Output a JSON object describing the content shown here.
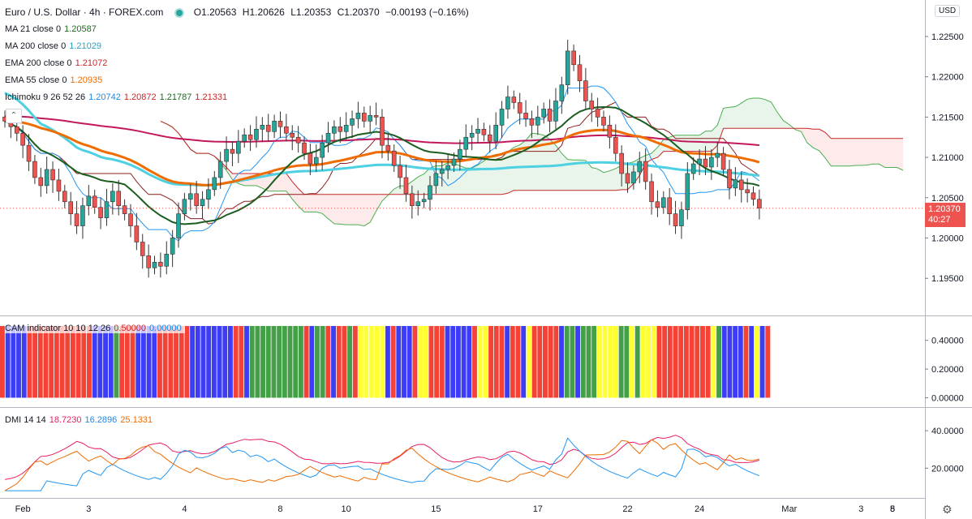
{
  "header": {
    "symbol": "Euro / U.S. Dollar · 4h · FOREX.com",
    "open": "O1.20563",
    "high": "H1.20626",
    "low": "L1.20353",
    "close": "C1.20370",
    "change": "−0.00193 (−0.16%)",
    "currency_button": "USD"
  },
  "indicators": {
    "ma21": {
      "label": "MA 21 close 0",
      "value": "1.20587"
    },
    "ma200": {
      "label": "MA 200 close 0",
      "value": "1.21029"
    },
    "ema200": {
      "label": "EMA 200 close 0",
      "value": "1.21072"
    },
    "ema55": {
      "label": "EMA 55 close 0",
      "value": "1.20935"
    },
    "ichimoku": {
      "label": "Ichimoku 9 26 52 26",
      "v1": "1.20742",
      "v2": "1.20872",
      "v3": "1.21787",
      "v4": "1.21331"
    },
    "cam": {
      "label": "CAM indicator 10 10 12 26",
      "v1": "0.50000",
      "v2": "0.00000"
    },
    "dmi": {
      "label": "DMI 14 14",
      "v1": "18.7230",
      "v2": "16.2896",
      "v3": "25.1331"
    }
  },
  "last_price": {
    "value": "1.20370",
    "countdown": "40:27"
  },
  "colors": {
    "bull": "#26a69a",
    "bear": "#ef5350",
    "ma21": "#1b5e20",
    "ma200": "#4dd0e1",
    "ema200": "#c2185b",
    "ema55": "#ef6c00",
    "tenkan": "#2196f3",
    "kijun": "#8d1f1f",
    "spanA": "#4caf50",
    "spanB": "#c62828",
    "cam_red": "#f44336",
    "cam_blue": "#3d3df5",
    "cam_green": "#43a047",
    "cam_yellow": "#ffff33",
    "dmi_plus": "#2196f3",
    "dmi_minus": "#ef6c00",
    "adx": "#e91e63"
  },
  "chart_data": [
    {
      "type": "candlestick",
      "panel": "price",
      "ylim": [
        1.1915,
        1.2255
      ],
      "y_ticks": [
        "1.22500",
        "1.22000",
        "1.21500",
        "1.21000",
        "1.20500",
        "1.20000",
        "1.19500"
      ],
      "x_ticks": [
        "Feb",
        "3",
        "4",
        "8",
        "10",
        "15",
        "17",
        "22",
        "24",
        "Mar",
        "3",
        "5",
        "8"
      ],
      "closes": [
        1.2145,
        1.2138,
        1.213,
        1.2115,
        1.2095,
        1.2075,
        1.2065,
        1.2085,
        1.2072,
        1.2058,
        1.2045,
        1.203,
        1.2015,
        1.204,
        1.2052,
        1.2038,
        1.2025,
        1.2045,
        1.2058,
        1.204,
        1.203,
        1.2015,
        1.1995,
        1.1978,
        1.1963,
        1.197,
        1.1965,
        1.198,
        1.2,
        1.203,
        1.2048,
        1.2055,
        1.204,
        1.2048,
        1.206,
        1.2075,
        1.2095,
        1.211,
        1.2105,
        1.212,
        1.2128,
        1.2122,
        1.2135,
        1.214,
        1.2132,
        1.2145,
        1.2138,
        1.213,
        1.2125,
        1.2118,
        1.2105,
        1.2092,
        1.21,
        1.2118,
        1.213,
        1.2138,
        1.2132,
        1.214,
        1.2148,
        1.2155,
        1.2145,
        1.2152,
        1.215,
        1.2115,
        1.2108,
        1.209,
        1.2075,
        1.2055,
        1.204,
        1.2045,
        1.2048,
        1.2065,
        1.208,
        1.2085,
        1.209,
        1.2098,
        1.211,
        1.2125,
        1.213,
        1.2135,
        1.2128,
        1.212,
        1.214,
        1.216,
        1.2175,
        1.2168,
        1.2155,
        1.2148,
        1.214,
        1.215,
        1.216,
        1.2145,
        1.217,
        1.219,
        1.2232,
        1.2215,
        1.2195,
        1.217,
        1.216,
        1.215,
        1.214,
        1.2125,
        1.2105,
        1.208,
        1.2068,
        1.2082,
        1.2095,
        1.207,
        1.2045,
        1.2038,
        1.205,
        1.203,
        1.2015,
        1.2035,
        1.208,
        1.2092,
        1.2098,
        1.2088,
        1.21,
        1.2105,
        1.2085,
        1.2062,
        1.2072,
        1.206,
        1.2056,
        1.2048,
        1.2037
      ],
      "series": [
        {
          "name": "MA 21 close 0",
          "last": 1.20587
        },
        {
          "name": "MA 200 close 0",
          "last": 1.21029
        },
        {
          "name": "EMA 200 close 0",
          "last": 1.21072
        },
        {
          "name": "EMA 55 close 0",
          "last": 1.20935
        }
      ]
    },
    {
      "type": "bar",
      "panel": "cam",
      "ylim": [
        -0.02,
        0.5
      ],
      "y_ticks": [
        "0.40000",
        "0.20000",
        "0.00000"
      ],
      "color_runs": [
        [
          "red",
          1
        ],
        [
          "blue",
          4
        ],
        [
          "red",
          12
        ],
        [
          "blue",
          4
        ],
        [
          "green",
          1
        ],
        [
          "red",
          3
        ],
        [
          "blue",
          4
        ],
        [
          "red",
          6
        ],
        [
          "blue",
          8
        ],
        [
          "red",
          2
        ],
        [
          "blue",
          1
        ],
        [
          "green",
          10
        ],
        [
          "red",
          1
        ],
        [
          "blue",
          1
        ],
        [
          "green",
          2
        ],
        [
          "red",
          1
        ],
        [
          "blue",
          1
        ],
        [
          "red",
          2
        ],
        [
          "green",
          1
        ],
        [
          "red",
          1
        ],
        [
          "yellow",
          5
        ],
        [
          "blue",
          1
        ],
        [
          "red",
          1
        ],
        [
          "blue",
          3
        ],
        [
          "red",
          1
        ],
        [
          "yellow",
          2
        ],
        [
          "red",
          3
        ],
        [
          "blue",
          5
        ],
        [
          "red",
          1
        ],
        [
          "yellow",
          2
        ],
        [
          "red",
          3
        ],
        [
          "blue",
          1
        ],
        [
          "red",
          2
        ],
        [
          "blue",
          1
        ],
        [
          "yellow",
          1
        ],
        [
          "red",
          5
        ],
        [
          "blue",
          1
        ],
        [
          "green",
          2
        ],
        [
          "blue",
          1
        ],
        [
          "green",
          3
        ],
        [
          "yellow",
          4
        ],
        [
          "green",
          2
        ],
        [
          "yellow",
          1
        ],
        [
          "green",
          1
        ],
        [
          "yellow",
          3
        ],
        [
          "red",
          10
        ],
        [
          "yellow",
          1
        ],
        [
          "green",
          1
        ],
        [
          "blue",
          4
        ],
        [
          "red",
          1
        ],
        [
          "blue",
          1
        ],
        [
          "yellow",
          1
        ],
        [
          "blue",
          1
        ],
        [
          "red",
          1
        ]
      ]
    },
    {
      "type": "line",
      "panel": "dmi",
      "ylim": [
        5,
        50
      ],
      "y_ticks": [
        "40.0000",
        "20.0000"
      ],
      "series": [
        {
          "name": "18.7230",
          "color": "adx"
        },
        {
          "name": "16.2896",
          "color": "dmi_plus"
        },
        {
          "name": "25.1331",
          "color": "dmi_minus"
        }
      ]
    }
  ]
}
